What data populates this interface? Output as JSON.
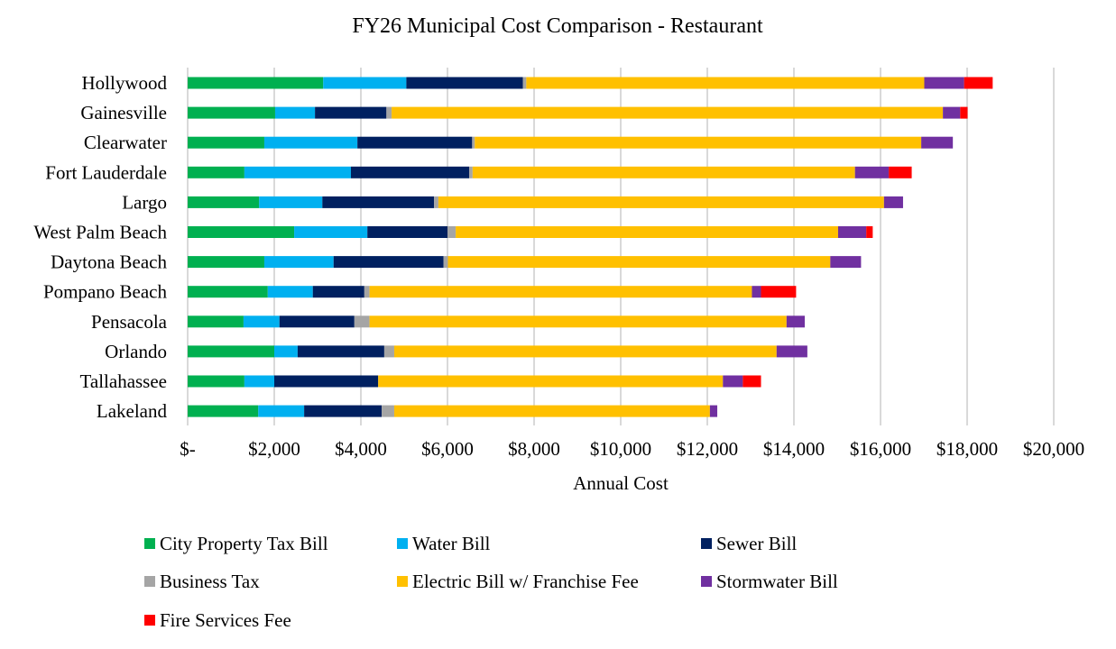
{
  "chart_data": {
    "type": "bar",
    "orientation": "horizontal",
    "stacked": true,
    "title": "FY26 Municipal Cost Comparison - Restaurant",
    "xlabel": "Annual Cost",
    "ylabel": "",
    "xlim": [
      0,
      20000
    ],
    "x_ticks": [
      0,
      2000,
      4000,
      6000,
      8000,
      10000,
      12000,
      14000,
      16000,
      18000,
      20000
    ],
    "x_tick_labels": [
      "$-",
      "$2,000",
      "$4,000",
      "$6,000",
      "$8,000",
      "$10,000",
      "$12,000",
      "$14,000",
      "$16,000",
      "$18,000",
      "$20,000"
    ],
    "grid": "vertical",
    "legend_position": "bottom",
    "categories": [
      "Hollywood",
      "Gainesville",
      "Clearwater",
      "Fort Lauderdale",
      "Largo",
      "West Palm Beach",
      "Daytona Beach",
      "Pompano Beach",
      "Pensacola",
      "Orlando",
      "Tallahassee",
      "Lakeland"
    ],
    "series": [
      {
        "name": "City Property Tax Bill",
        "color": "#00B050",
        "values": [
          3130,
          2020,
          1770,
          1310,
          1650,
          2460,
          1770,
          1850,
          1290,
          2000,
          1310,
          1630
        ]
      },
      {
        "name": "Water Bill",
        "color": "#00B0F0",
        "values": [
          1920,
          920,
          2150,
          2460,
          1460,
          1690,
          1600,
          1040,
          830,
          540,
          690,
          1060
        ]
      },
      {
        "name": "Sewer Bill",
        "color": "#002060",
        "values": [
          2690,
          1650,
          2650,
          2730,
          2580,
          1850,
          2540,
          1190,
          1730,
          2000,
          2400,
          1790
        ]
      },
      {
        "name": "Business Tax",
        "color": "#A5A5A5",
        "values": [
          80,
          120,
          60,
          80,
          100,
          190,
          100,
          120,
          350,
          230,
          0,
          290
        ]
      },
      {
        "name": "Electric Bill w/ Franchise Fee",
        "color": "#FFC000",
        "values": [
          9190,
          12730,
          10310,
          8830,
          10290,
          8830,
          8830,
          8830,
          9630,
          8830,
          7960,
          7290
        ]
      },
      {
        "name": "Stormwater Bill",
        "color": "#7030A0",
        "values": [
          920,
          400,
          730,
          780,
          440,
          650,
          710,
          210,
          420,
          710,
          460,
          170
        ]
      },
      {
        "name": "Fire Services Fee",
        "color": "#FF0000",
        "values": [
          660,
          170,
          0,
          530,
          0,
          150,
          0,
          810,
          0,
          0,
          420,
          0
        ]
      }
    ]
  }
}
